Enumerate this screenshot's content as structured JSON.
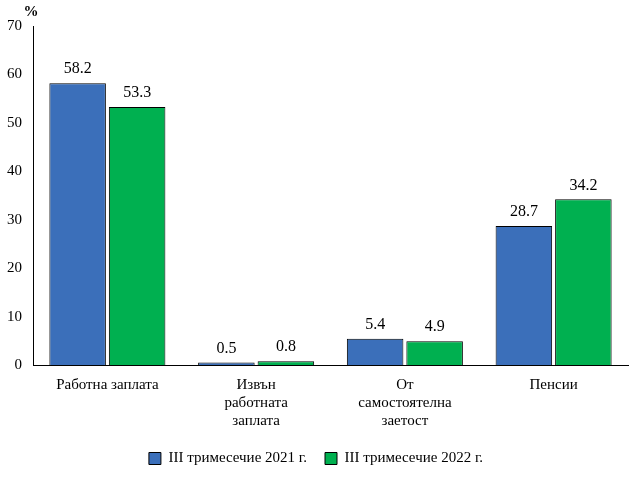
{
  "chart_data": {
    "type": "bar",
    "ylabel": "%",
    "categories": [
      "Работна заплата",
      [
        "Извън",
        "работната",
        "заплата"
      ],
      [
        "От",
        "самостоятелна",
        "заетост"
      ],
      "Пенсии"
    ],
    "series": [
      {
        "name": "III тримесечие 2021 г.",
        "color": "#3b6fba",
        "values": [
          58.2,
          0.5,
          5.4,
          28.7
        ]
      },
      {
        "name": "III тримесечие 2022 г.",
        "color": "#00b050",
        "values": [
          53.3,
          0.8,
          4.9,
          34.2
        ]
      }
    ],
    "ylim": [
      0,
      70
    ],
    "yticks": [
      0,
      10,
      20,
      30,
      40,
      50,
      60,
      70
    ],
    "grid": false,
    "legend": "bottom",
    "data_labels": true
  }
}
